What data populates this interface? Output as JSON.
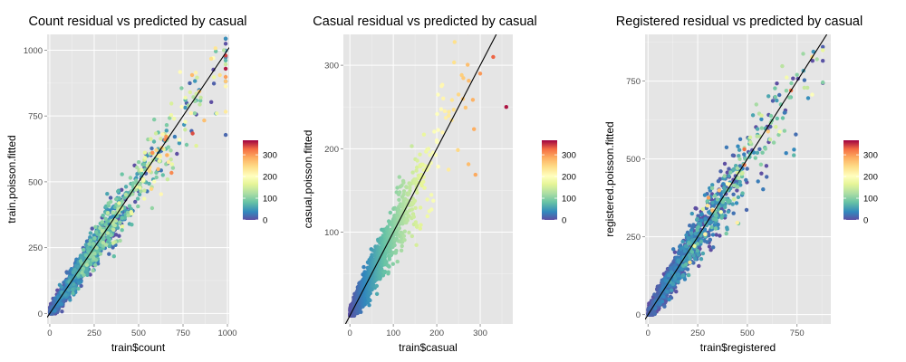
{
  "chart_data": [
    {
      "type": "scatter",
      "title": "Count residual vs predicted by casual",
      "xlabel": "train$count",
      "ylabel": "train.poisson.fitted",
      "xlim": [
        -15,
        1010
      ],
      "ylim": [
        -40,
        1060
      ],
      "x_ticks": [
        0,
        250,
        500,
        750,
        1000
      ],
      "y_ticks": [
        0,
        250,
        500,
        750,
        1000
      ],
      "x_tick_labels": [
        "0",
        "250",
        "500",
        "750",
        "1000"
      ],
      "y_tick_labels": [
        "0",
        "250",
        "500",
        "750",
        "1000"
      ],
      "grid": true,
      "reference_line": "y = x",
      "color_variable": "casual",
      "color_range": [
        0,
        367
      ],
      "legend_ticks": [
        0,
        100,
        200,
        300
      ],
      "legend_tick_labels": [
        "0",
        "100",
        "200",
        "300"
      ],
      "legend_position": "right",
      "n_points_approx": 1500,
      "points": [
        [
          40,
          35,
          2
        ],
        [
          120,
          110,
          8
        ],
        [
          200,
          215,
          15
        ],
        [
          260,
          250,
          25
        ],
        [
          350,
          330,
          45
        ],
        [
          420,
          440,
          80
        ],
        [
          500,
          490,
          120
        ],
        [
          550,
          560,
          150
        ],
        [
          600,
          620,
          250
        ],
        [
          650,
          660,
          310
        ],
        [
          700,
          740,
          180
        ],
        [
          780,
          790,
          120
        ],
        [
          850,
          820,
          140
        ],
        [
          920,
          970,
          200
        ],
        [
          980,
          1000,
          130
        ]
      ]
    },
    {
      "type": "scatter",
      "title": "Casual residual vs predicted by casual",
      "xlabel": "train$casual",
      "ylabel": "casual.poisson.fitted",
      "xlim": [
        -15,
        375
      ],
      "ylim": [
        -10,
        337
      ],
      "x_ticks": [
        0,
        100,
        200,
        300
      ],
      "y_ticks": [
        100,
        200,
        300
      ],
      "x_tick_labels": [
        "0",
        "100",
        "200",
        "300"
      ],
      "y_tick_labels": [
        "100",
        "200",
        "300"
      ],
      "grid": true,
      "reference_line": "y = x",
      "color_variable": "casual",
      "color_range": [
        0,
        367
      ],
      "legend_ticks": [
        0,
        100,
        200,
        300
      ],
      "legend_tick_labels": [
        "0",
        "100",
        "200",
        "300"
      ],
      "legend_position": "right",
      "n_points_approx": 1500,
      "points": [
        [
          5,
          5,
          5
        ],
        [
          30,
          28,
          30
        ],
        [
          60,
          62,
          60
        ],
        [
          100,
          102,
          100
        ],
        [
          150,
          160,
          150
        ],
        [
          200,
          210,
          200
        ],
        [
          250,
          265,
          250
        ],
        [
          300,
          290,
          300
        ],
        [
          330,
          310,
          330
        ],
        [
          360,
          250,
          360
        ]
      ]
    },
    {
      "type": "scatter",
      "title": "Registered residual vs predicted by casual",
      "xlabel": "train$registered",
      "ylabel": "registered.poisson.fitted",
      "xlim": [
        -15,
        920
      ],
      "ylim": [
        -30,
        900
      ],
      "x_ticks": [
        0,
        250,
        500,
        750
      ],
      "y_ticks": [
        0,
        250,
        500,
        750
      ],
      "x_tick_labels": [
        "0",
        "250",
        "500",
        "750"
      ],
      "y_tick_labels": [
        "0",
        "250",
        "500",
        "750"
      ],
      "grid": true,
      "reference_line": "y = x",
      "color_variable": "casual",
      "color_range": [
        0,
        367
      ],
      "legend_ticks": [
        0,
        100,
        200,
        300
      ],
      "legend_tick_labels": [
        "0",
        "100",
        "200",
        "300"
      ],
      "legend_position": "right",
      "n_points_approx": 1500,
      "points": [
        [
          40,
          45,
          3
        ],
        [
          150,
          140,
          20
        ],
        [
          250,
          260,
          35
        ],
        [
          350,
          370,
          90
        ],
        [
          400,
          420,
          200
        ],
        [
          450,
          470,
          120
        ],
        [
          550,
          520,
          60
        ],
        [
          650,
          630,
          80
        ],
        [
          750,
          770,
          100
        ],
        [
          850,
          820,
          120
        ]
      ]
    }
  ]
}
